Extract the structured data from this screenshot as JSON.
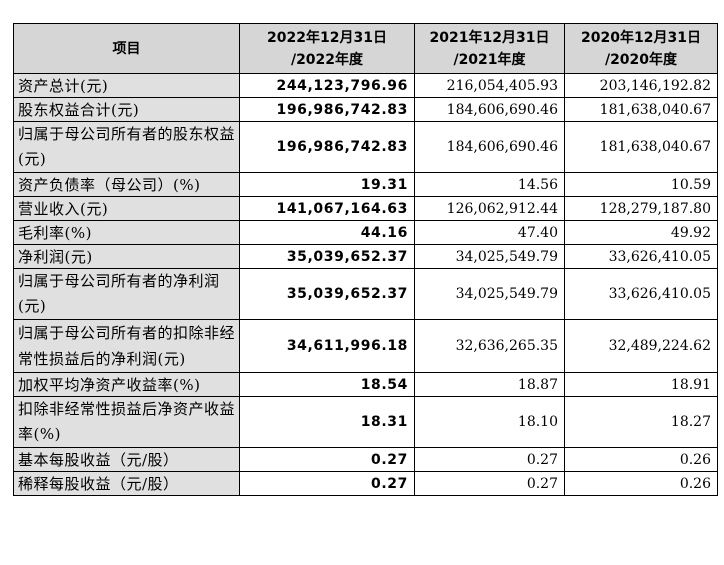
{
  "header": {
    "item": "项目",
    "col1": [
      "2022年12月31日",
      "/2022年度"
    ],
    "col2": [
      "2021年12月31日",
      "/2021年度"
    ],
    "col3": [
      "2020年12月31日",
      "/2020年度"
    ]
  },
  "rows": [
    {
      "label": "资产总计(元)",
      "v2022": "244,123,796.96",
      "v2021": "216,054,405.93",
      "v2020": "203,146,192.82"
    },
    {
      "label": "股东权益合计(元)",
      "v2022": "196,986,742.83",
      "v2021": "184,606,690.46",
      "v2020": "181,638,040.67"
    },
    {
      "label": "归属于母公司所有者的股东权益(元)",
      "v2022": "196,986,742.83",
      "v2021": "184,606,690.46",
      "v2020": "181,638,040.67"
    },
    {
      "label": "资产负债率（母公司）(%)",
      "v2022": "19.31",
      "v2021": "14.56",
      "v2020": "10.59"
    },
    {
      "label": "营业收入(元)",
      "v2022": "141,067,164.63",
      "v2021": "126,062,912.44",
      "v2020": "128,279,187.80"
    },
    {
      "label": "毛利率(%)",
      "v2022": "44.16",
      "v2021": "47.40",
      "v2020": "49.92"
    },
    {
      "label": "净利润(元)",
      "v2022": "35,039,652.37",
      "v2021": "34,025,549.79",
      "v2020": "33,626,410.05"
    },
    {
      "label": "归属于母公司所有者的净利润(元)",
      "v2022": "35,039,652.37",
      "v2021": "34,025,549.79",
      "v2020": "33,626,410.05"
    },
    {
      "label": "归属于母公司所有者的扣除非经常性损益后的净利润(元)",
      "v2022": "34,611,996.18",
      "v2021": "32,636,265.35",
      "v2020": "32,489,224.62"
    },
    {
      "label": "加权平均净资产收益率(%)",
      "v2022": "18.54",
      "v2021": "18.87",
      "v2020": "18.91"
    },
    {
      "label": "扣除非经常性损益后净资产收益率(%)",
      "v2022": "18.31",
      "v2021": "18.10",
      "v2020": "18.27"
    },
    {
      "label": "基本每股收益（元/股）",
      "v2022": "0.27",
      "v2021": "0.27",
      "v2020": "0.26"
    },
    {
      "label": "稀释每股收益（元/股）",
      "v2022": "0.27",
      "v2021": "0.27",
      "v2020": "0.26"
    }
  ]
}
